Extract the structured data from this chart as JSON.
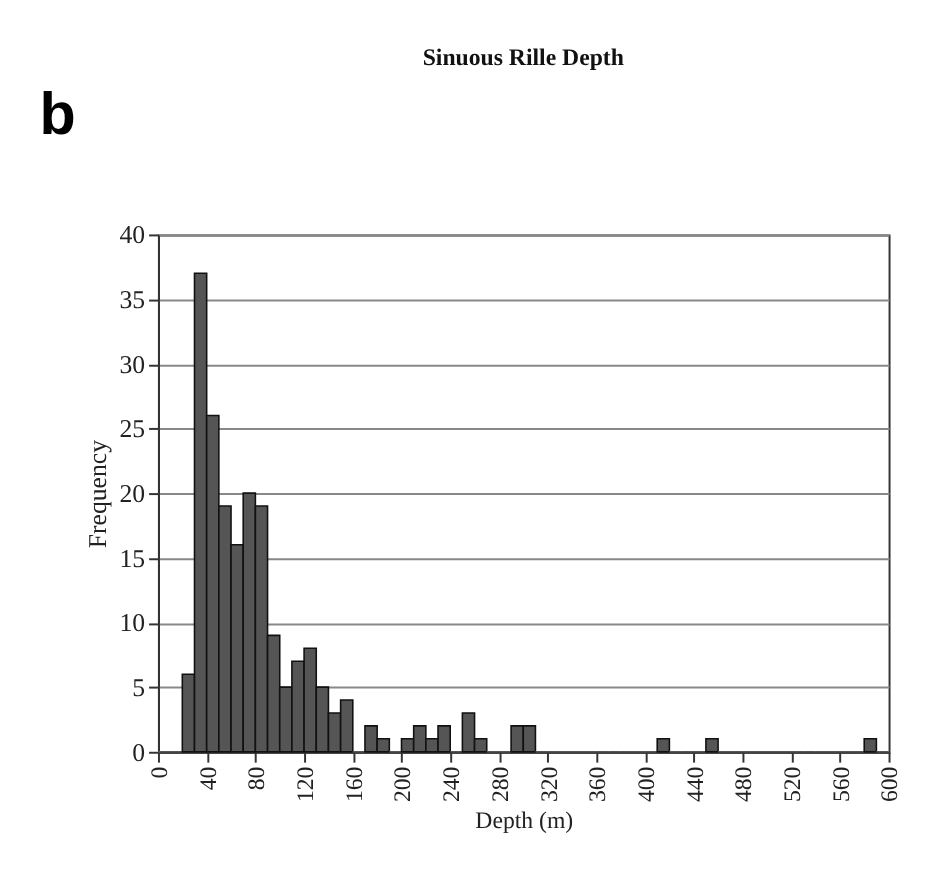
{
  "chart_data": {
    "type": "histogram",
    "title": "Sinuous Rille Depth",
    "xlabel": "Depth (m)",
    "ylabel": "Frequency",
    "annotations": [
      "b"
    ],
    "bins": [
      0,
      10,
      20,
      30,
      40,
      50,
      60,
      70,
      80,
      90,
      100,
      110,
      120,
      130,
      140,
      150,
      160,
      170,
      180,
      190,
      200,
      210,
      220,
      230,
      240,
      250,
      260,
      270,
      280,
      290,
      300,
      310,
      320,
      330,
      340,
      350,
      360,
      370,
      380,
      390,
      400,
      410,
      420,
      430,
      440,
      450,
      460,
      470,
      480,
      490,
      500,
      510,
      520,
      530,
      540,
      550,
      560,
      570,
      580,
      590,
      600
    ],
    "values": [
      0,
      0,
      6,
      37,
      26,
      19,
      16,
      20,
      19,
      9,
      5,
      7,
      8,
      5,
      3,
      4,
      0,
      2,
      1,
      0,
      1,
      2,
      1,
      2,
      0,
      3,
      1,
      0,
      0,
      2,
      2,
      0,
      0,
      0,
      0,
      0,
      0,
      0,
      0,
      0,
      0,
      1,
      0,
      0,
      0,
      1,
      0,
      0,
      0,
      0,
      0,
      0,
      0,
      0,
      0,
      0,
      0,
      0,
      1,
      0
    ],
    "color": "#555555",
    "xlim": [
      0,
      600
    ],
    "xticks": [
      0,
      40,
      80,
      120,
      160,
      200,
      240,
      280,
      320,
      360,
      400,
      440,
      480,
      520,
      560,
      600
    ],
    "ylim": [
      0,
      40
    ],
    "yticks": [
      0,
      5,
      10,
      15,
      20,
      25,
      30,
      35,
      40
    ],
    "grid": "y"
  }
}
